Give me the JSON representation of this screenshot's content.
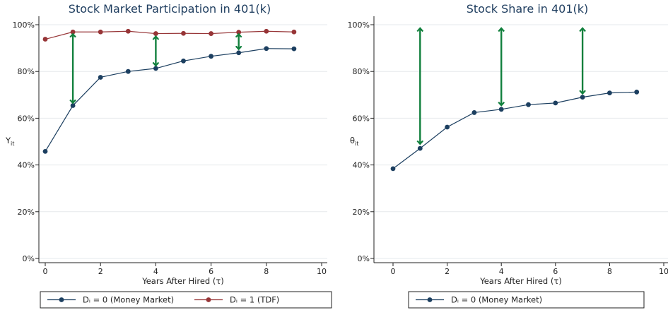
{
  "chart_data": [
    {
      "type": "line",
      "title": "Stock Market Participation in 401(k)",
      "xlabel": "Years After Hired (τ)",
      "ylabel": "Y",
      "ylabel_sub": "it",
      "x_ticks": [
        "0",
        "2",
        "4",
        "6",
        "8",
        "10"
      ],
      "y_ticks": [
        "0%",
        "20%",
        "40%",
        "60%",
        "80%",
        "100%"
      ],
      "xlim": [
        0,
        10
      ],
      "ylim": [
        0,
        100
      ],
      "grid": "horizontal",
      "legend": "bottom",
      "x": [
        0,
        1,
        2,
        3,
        4,
        5,
        6,
        7,
        8,
        9
      ],
      "series": [
        {
          "name": "Dᵢ = 0 (Money Market)",
          "color": "#1c3f60",
          "values": [
            45.8,
            65.4,
            77.5,
            80.0,
            81.3,
            84.5,
            86.5,
            88.0,
            89.8,
            89.7
          ]
        },
        {
          "name": "Dᵢ = 1 (TDF)",
          "color": "#973537",
          "values": [
            93.8,
            96.9,
            96.9,
            97.2,
            96.2,
            96.3,
            96.2,
            96.8,
            97.2,
            96.9
          ]
        }
      ],
      "arrows": [
        {
          "x": 1,
          "from": 66.5,
          "to": 96.0
        },
        {
          "x": 4,
          "from": 82.5,
          "to": 95.0
        },
        {
          "x": 7,
          "from": 89.5,
          "to": 96.0
        }
      ],
      "arrow_color": "#11803d"
    },
    {
      "type": "line",
      "title": "Stock Share in 401(k)",
      "xlabel": "Years After Hired (τ)",
      "ylabel": "θ",
      "ylabel_sub": "it",
      "x_ticks": [
        "0",
        "2",
        "4",
        "6",
        "8",
        "10"
      ],
      "y_ticks": [
        "0%",
        "20%",
        "40%",
        "60%",
        "80%",
        "100%"
      ],
      "xlim": [
        0,
        10
      ],
      "ylim": [
        0,
        100
      ],
      "grid": "horizontal",
      "legend": "bottom",
      "x": [
        0,
        1,
        2,
        3,
        4,
        5,
        6,
        7,
        8,
        9
      ],
      "series": [
        {
          "name": "Dᵢ = 0 (Money Market)",
          "color": "#1c3f60",
          "values": [
            38.4,
            47.1,
            56.2,
            62.4,
            63.8,
            65.8,
            66.5,
            69.0,
            70.8,
            71.2
          ]
        }
      ],
      "arrows": [
        {
          "x": 1,
          "from": 49.0,
          "to": 98.5
        },
        {
          "x": 4,
          "from": 65.5,
          "to": 98.5
        },
        {
          "x": 7,
          "from": 70.5,
          "to": 98.5
        }
      ],
      "arrow_color": "#11803d"
    }
  ]
}
